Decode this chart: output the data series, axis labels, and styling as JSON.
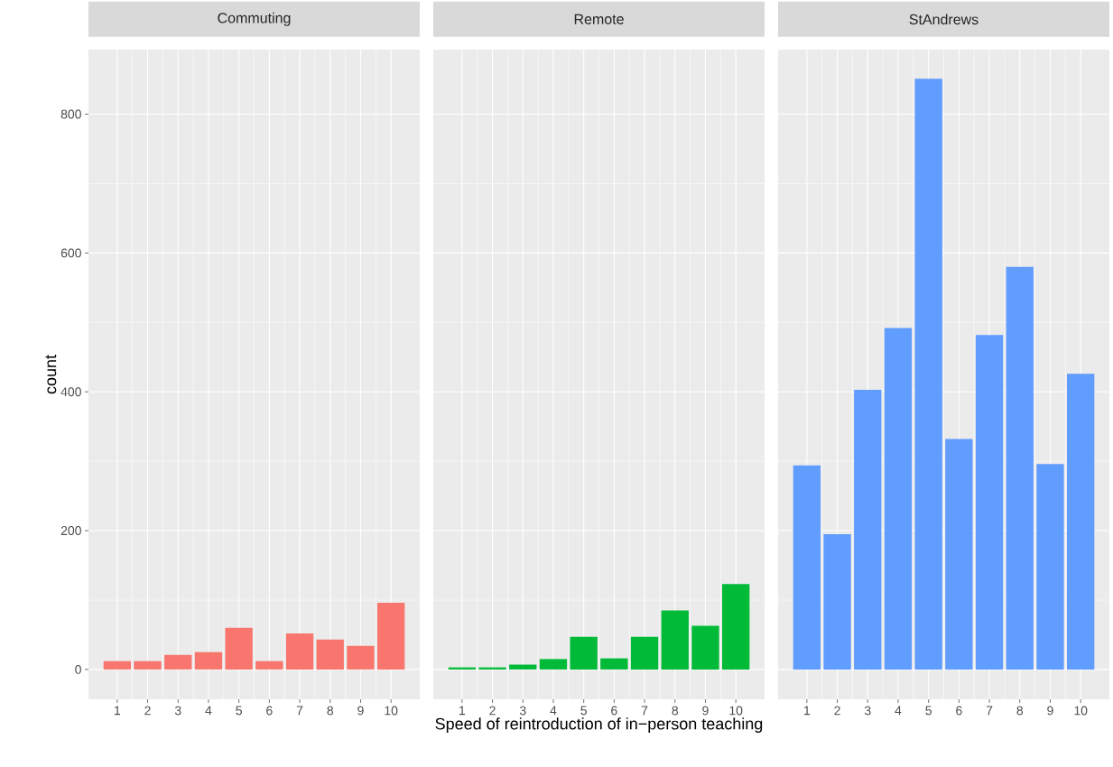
{
  "chart_data": [
    {
      "type": "bar",
      "title": "Commuting",
      "ylabel": "count",
      "x": [
        1,
        2,
        3,
        4,
        5,
        6,
        7,
        8,
        9,
        10
      ],
      "values": [
        12,
        12,
        21,
        25,
        60,
        12,
        52,
        43,
        34,
        96
      ],
      "color": "#F8766D",
      "xlim": [
        0.055,
        10.945
      ],
      "ylim": [
        -43,
        893
      ],
      "xticks": [
        1,
        2,
        3,
        4,
        5,
        6,
        7,
        8,
        9,
        10
      ],
      "yticks": [
        0,
        200,
        400,
        600,
        800
      ],
      "grid": true
    },
    {
      "type": "bar",
      "title": "Remote",
      "xlabel": "Speed of reintroduction of in−person teaching",
      "x": [
        1,
        2,
        3,
        4,
        5,
        6,
        7,
        8,
        9,
        10
      ],
      "values": [
        3,
        3,
        7,
        15,
        47,
        16,
        47,
        85,
        63,
        123
      ],
      "color": "#00BA38",
      "xlim": [
        0.055,
        10.945
      ],
      "ylim": [
        -43,
        893
      ],
      "xticks": [
        1,
        2,
        3,
        4,
        5,
        6,
        7,
        8,
        9,
        10
      ],
      "yticks": [
        0,
        200,
        400,
        600,
        800
      ],
      "grid": true,
      "tick_labels": "x"
    },
    {
      "type": "bar",
      "title": "StAndrews",
      "x": [
        1,
        2,
        3,
        4,
        5,
        6,
        7,
        8,
        9,
        10
      ],
      "values": [
        294,
        195,
        403,
        492,
        851,
        332,
        482,
        580,
        296,
        426
      ],
      "color": "#619CFF",
      "xlim": [
        0.055,
        10.945
      ],
      "ylim": [
        -43,
        893
      ],
      "xticks": [
        1,
        2,
        3,
        4,
        5,
        6,
        7,
        8,
        9,
        10
      ],
      "yticks": [
        0,
        200,
        400,
        600,
        800
      ],
      "grid": true,
      "tick_labels": "x"
    }
  ]
}
